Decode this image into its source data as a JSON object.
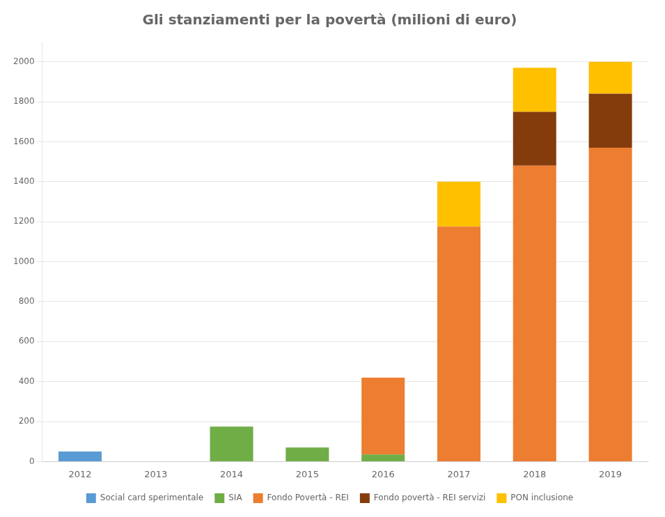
{
  "chart_data": {
    "type": "bar",
    "title": "Gli stanziamenti per la povertà (milioni di euro)",
    "categories": [
      "2012",
      "2013",
      "2014",
      "2015",
      "2016",
      "2017",
      "2018",
      "2019"
    ],
    "series": [
      {
        "name": "Social card sperimentale",
        "color": "#5b9bd5",
        "values": [
          50,
          0,
          0,
          0,
          0,
          0,
          0,
          0
        ]
      },
      {
        "name": "SIA",
        "color": "#70ad47",
        "values": [
          0,
          0,
          175,
          70,
          35,
          0,
          0,
          0
        ]
      },
      {
        "name": "Fondo Povertà - REI",
        "color": "#ed7d31",
        "values": [
          0,
          0,
          0,
          0,
          385,
          1175,
          1480,
          1570
        ]
      },
      {
        "name": "Fondo povertà - REI servizi",
        "color": "#843c0c",
        "values": [
          0,
          0,
          0,
          0,
          0,
          0,
          270,
          270
        ]
      },
      {
        "name": "PON inclusione",
        "color": "#ffc000",
        "values": [
          0,
          0,
          0,
          0,
          0,
          225,
          220,
          160
        ]
      }
    ],
    "stacked": true,
    "ylim": [
      0,
      2100
    ],
    "yticks": [
      0,
      200,
      400,
      600,
      800,
      1000,
      1200,
      1400,
      1600,
      1800,
      2000
    ],
    "grid": true,
    "legend": "bottom"
  }
}
